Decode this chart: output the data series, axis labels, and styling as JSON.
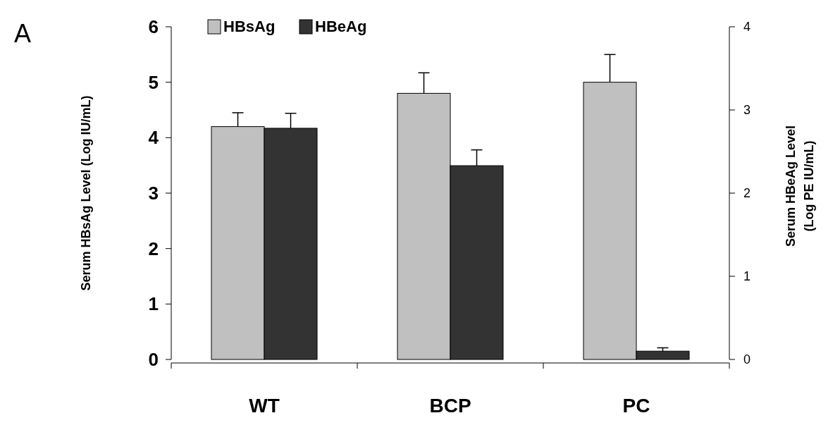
{
  "chart_data": {
    "type": "bar",
    "categories": [
      "WT",
      "BCP",
      "PC"
    ],
    "series": [
      {
        "name": "HBsAg",
        "color": "#c0c0c0",
        "values": [
          4.2,
          4.8,
          5.0
        ],
        "errors": [
          0.25,
          0.37,
          0.5
        ]
      },
      {
        "name": "HBeAg",
        "color": "#333333",
        "values": [
          2.78,
          2.33,
          0.1
        ],
        "errors": [
          0.18,
          0.19,
          0.04
        ],
        "axis": "y2"
      }
    ],
    "ylabel": "Serum HBsAg Level (Log IU/mL)",
    "y2label": "Serum HBeAg Level (Log PE IU/mL)",
    "ylim": [
      0,
      6
    ],
    "yticks": [
      0,
      1,
      2,
      3,
      4,
      5,
      6
    ],
    "y2lim": [
      0,
      4
    ],
    "y2ticks": [
      0,
      1,
      2,
      3,
      4
    ],
    "annotations": [
      "A"
    ],
    "legend": "top",
    "grid": false
  }
}
